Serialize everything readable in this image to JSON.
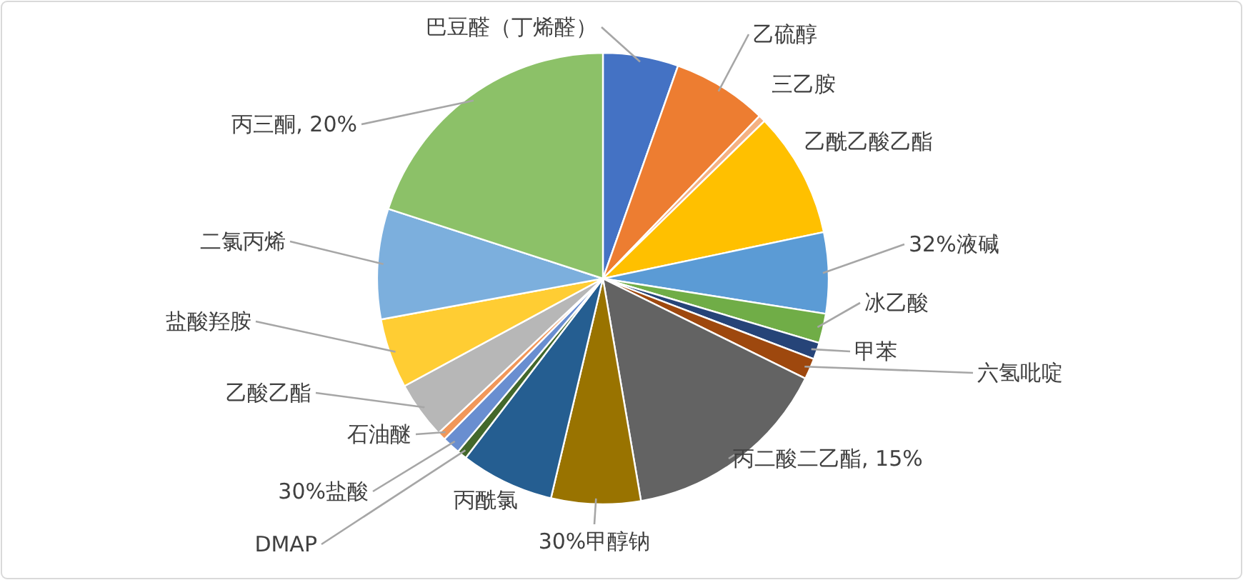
{
  "chart_data": {
    "type": "pie",
    "categories": [
      "巴豆醛（丁烯醛）",
      "乙硫醇",
      "三乙胺",
      "乙酰乙酸乙酯",
      "32%液碱",
      "冰乙酸",
      "甲苯",
      "六氢吡啶",
      "丙二酸二乙酯",
      "30%甲醇钠",
      "丙酰氯",
      "DMAP",
      "30%盐酸",
      "石油醚",
      "乙酸乙酯",
      "盐酸羟胺",
      "二氯丙烯",
      "丙三酮"
    ],
    "values": [
      5.4,
      6.8,
      0.5,
      9.0,
      5.8,
      2.1,
      1.2,
      1.5,
      15,
      6.4,
      6.7,
      0.7,
      1.3,
      0.6,
      4.1,
      5.0,
      7.9,
      20
    ],
    "colors": [
      "#4472c4",
      "#ed7d31",
      "#f4b183",
      "#ffc000",
      "#5b9bd5",
      "#70ad47",
      "#264478",
      "#9e480e",
      "#636363",
      "#997300",
      "#255e91",
      "#43682b",
      "#698ed0",
      "#f1975a",
      "#b7b7b7",
      "#ffcd33",
      "#7cafdd",
      "#8cc168"
    ],
    "value_labels": [
      null,
      null,
      null,
      null,
      null,
      null,
      null,
      null,
      "15%",
      null,
      null,
      null,
      null,
      null,
      null,
      null,
      null,
      "20%"
    ]
  }
}
